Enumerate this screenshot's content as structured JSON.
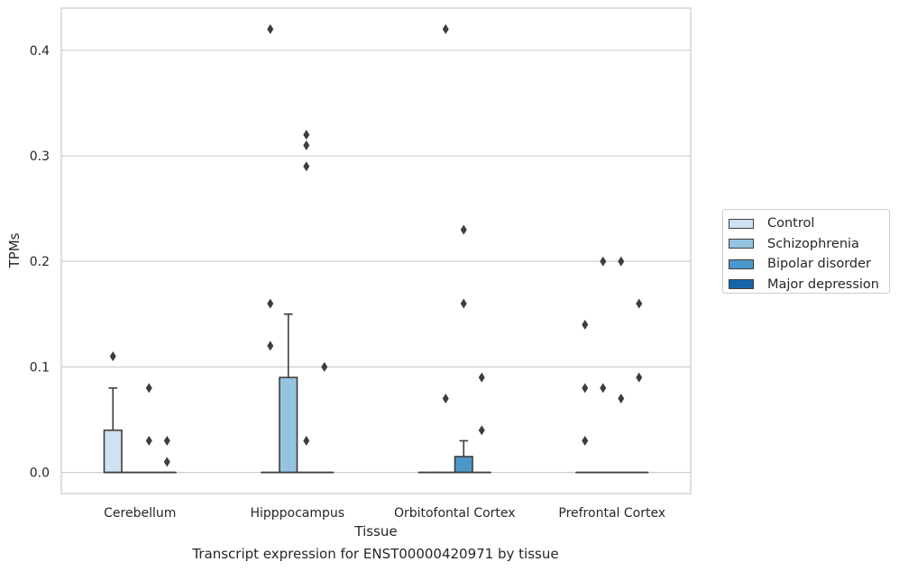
{
  "chart_data": {
    "type": "box",
    "title": "",
    "caption": "Transcript expression for ENST00000420971 by tissue",
    "xlabel": "Tissue",
    "ylabel": "TPMs",
    "ylim": [
      -0.02,
      0.44
    ],
    "yticks": [
      0.0,
      0.1,
      0.2,
      0.3,
      0.4
    ],
    "ytick_labels": [
      "0.0",
      "0.1",
      "0.2",
      "0.3",
      "0.4"
    ],
    "grid": true,
    "legend_position": "right",
    "categories": [
      "Cerebellum",
      "Hipppocampus",
      "Orbitofontal Cortex",
      "Prefrontal Cortex"
    ],
    "series": [
      {
        "name": "Control",
        "color": "#d0e1f2",
        "boxes": [
          {
            "q1": 0.0,
            "median": 0.0,
            "q3": 0.04,
            "whisker_low": 0.0,
            "whisker_high": 0.08,
            "outliers": [
              0.11
            ]
          },
          {
            "q1": 0.0,
            "median": 0.0,
            "q3": 0.0,
            "whisker_low": 0.0,
            "whisker_high": 0.0,
            "outliers": [
              0.12,
              0.16,
              0.42
            ]
          },
          {
            "q1": 0.0,
            "median": 0.0,
            "q3": 0.0,
            "whisker_low": 0.0,
            "whisker_high": 0.0,
            "outliers": []
          },
          {
            "q1": 0.0,
            "median": 0.0,
            "q3": 0.0,
            "whisker_low": 0.0,
            "whisker_high": 0.0,
            "outliers": [
              0.03,
              0.08,
              0.14
            ]
          }
        ]
      },
      {
        "name": "Schizophrenia",
        "color": "#94c4df",
        "boxes": [
          {
            "q1": 0.0,
            "median": 0.0,
            "q3": 0.0,
            "whisker_low": 0.0,
            "whisker_high": 0.0,
            "outliers": []
          },
          {
            "q1": 0.0,
            "median": 0.0,
            "q3": 0.09,
            "whisker_low": 0.0,
            "whisker_high": 0.15,
            "outliers": []
          },
          {
            "q1": 0.0,
            "median": 0.0,
            "q3": 0.0,
            "whisker_low": 0.0,
            "whisker_high": 0.0,
            "outliers": [
              0.07,
              0.42
            ]
          },
          {
            "q1": 0.0,
            "median": 0.0,
            "q3": 0.0,
            "whisker_low": 0.0,
            "whisker_high": 0.0,
            "outliers": [
              0.08,
              0.2
            ]
          }
        ]
      },
      {
        "name": "Bipolar disorder",
        "color": "#4a98c9",
        "boxes": [
          {
            "q1": 0.0,
            "median": 0.0,
            "q3": 0.0,
            "whisker_low": 0.0,
            "whisker_high": 0.0,
            "outliers": [
              0.03,
              0.08
            ]
          },
          {
            "q1": 0.0,
            "median": 0.0,
            "q3": 0.0,
            "whisker_low": 0.0,
            "whisker_high": 0.0,
            "outliers": [
              0.03,
              0.29,
              0.31,
              0.32
            ]
          },
          {
            "q1": 0.0,
            "median": 0.0,
            "q3": 0.015,
            "whisker_low": 0.0,
            "whisker_high": 0.03,
            "outliers": [
              0.16,
              0.23
            ]
          },
          {
            "q1": 0.0,
            "median": 0.0,
            "q3": 0.0,
            "whisker_low": 0.0,
            "whisker_high": 0.0,
            "outliers": [
              0.07,
              0.2
            ]
          }
        ]
      },
      {
        "name": "Major depression",
        "color": "#1764ab",
        "boxes": [
          {
            "q1": 0.0,
            "median": 0.0,
            "q3": 0.0,
            "whisker_low": 0.0,
            "whisker_high": 0.0,
            "outliers": [
              0.01,
              0.03
            ]
          },
          {
            "q1": 0.0,
            "median": 0.0,
            "q3": 0.0,
            "whisker_low": 0.0,
            "whisker_high": 0.0,
            "outliers": [
              0.1
            ]
          },
          {
            "q1": 0.0,
            "median": 0.0,
            "q3": 0.0,
            "whisker_low": 0.0,
            "whisker_high": 0.0,
            "outliers": [
              0.04,
              0.09
            ]
          },
          {
            "q1": 0.0,
            "median": 0.0,
            "q3": 0.0,
            "whisker_low": 0.0,
            "whisker_high": 0.0,
            "outliers": [
              0.09,
              0.16
            ]
          }
        ]
      }
    ]
  }
}
